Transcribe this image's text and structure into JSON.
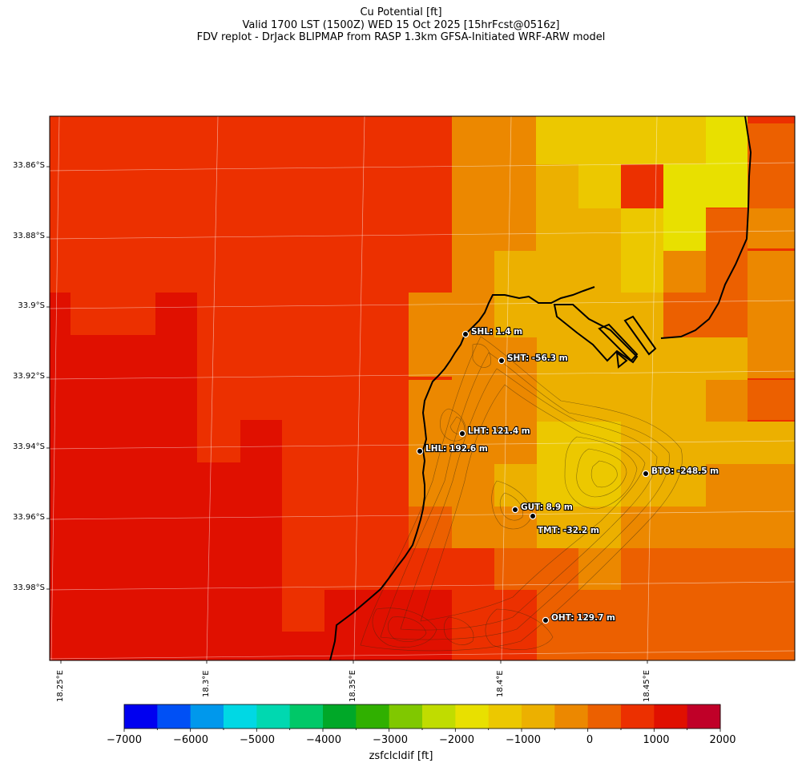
{
  "title": {
    "line1": "Cu Potential [ft]",
    "line2": "Valid 1700 LST (1500Z) WED 15 Oct 2025 [15hrFcst@0516z]",
    "line3": "FDV replot - DrJack BLIPMAP from RASP 1.3km GFSA-Initiated WRF-ARW model"
  },
  "map": {
    "lat_ticks": [
      "33.86°S",
      "33.88°S",
      "33.9°S",
      "33.92°S",
      "33.94°S",
      "33.96°S",
      "33.98°S"
    ],
    "lon_ticks": [
      "18.25°E",
      "18.3°E",
      "18.35°E",
      "18.4°E",
      "18.45°E"
    ],
    "stations": [
      {
        "code": "SHL",
        "label": "SHL: 1.4 m"
      },
      {
        "code": "SHT",
        "label": "SHT: -56.3 m"
      },
      {
        "code": "LHT",
        "label": "LHT: 121.4 m"
      },
      {
        "code": "LHL",
        "label": "LHL: 192.6 m"
      },
      {
        "code": "BTO",
        "label": "BTO: -248.5 m"
      },
      {
        "code": "GUT",
        "label": "GUT: 8.9 m"
      },
      {
        "code": "TMT",
        "label": "TMT: -32.2 m"
      },
      {
        "code": "OHT",
        "label": "OHT: 129.7 m"
      }
    ]
  },
  "colorbar": {
    "label": "zsfclcldif [ft]",
    "ticks": [
      "−7000",
      "−6000",
      "−5000",
      "−4000",
      "−3000",
      "−2000",
      "−1000",
      "0",
      "1000",
      "2000"
    ],
    "colors": [
      "#0000f0",
      "#0050f5",
      "#0098ec",
      "#00d8e4",
      "#00d8b0",
      "#00c868",
      "#00a828",
      "#30b000",
      "#80c800",
      "#c0dc00",
      "#e8e000",
      "#ecc800",
      "#ecb000",
      "#ec8800",
      "#ec6000",
      "#ec3000",
      "#e01000",
      "#c00028"
    ]
  },
  "palette": {
    "c_red_dark": "#e01000",
    "c_red": "#ec3000",
    "c_orange_red": "#ec6000",
    "c_orange": "#ec8800",
    "c_amber": "#ecb000",
    "c_gold": "#ecc800",
    "c_yellow": "#e8e000"
  }
}
